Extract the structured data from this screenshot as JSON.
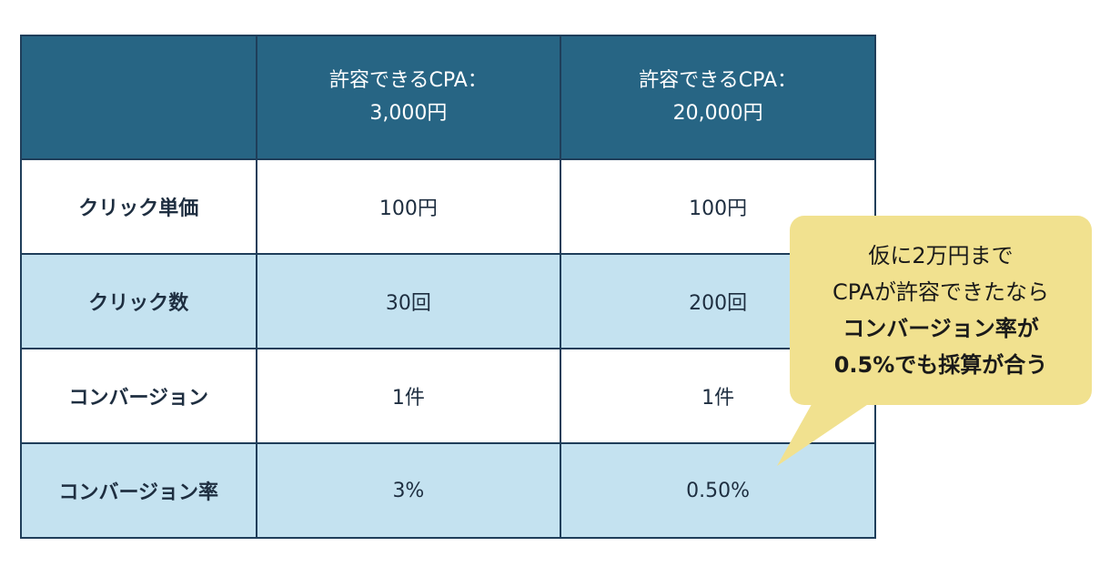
{
  "table": {
    "header": {
      "col_a": [
        "許容できるCPA：",
        "3,000円"
      ],
      "col_b": [
        "許容できるCPA：",
        "20,000円"
      ]
    },
    "rows": [
      {
        "label": "クリック単価",
        "a": "100円",
        "b": "100円"
      },
      {
        "label": "クリック数",
        "a": "30回",
        "b": "200回"
      },
      {
        "label": "コンバージョン",
        "a": "1件",
        "b": "1件"
      },
      {
        "label": "コンバージョン率",
        "a": "3%",
        "b": "0.50%"
      }
    ]
  },
  "callout": {
    "lines": [
      "仮に2万円まで",
      "CPAが許容できたなら",
      "コンバージョン率が",
      "0.5%でも採算が合う"
    ]
  },
  "colors": {
    "header_bg": "#276584",
    "row_alt_bg": "#c4e2f0",
    "border": "#1f3e5a",
    "callout_bg": "#f1e18f"
  }
}
